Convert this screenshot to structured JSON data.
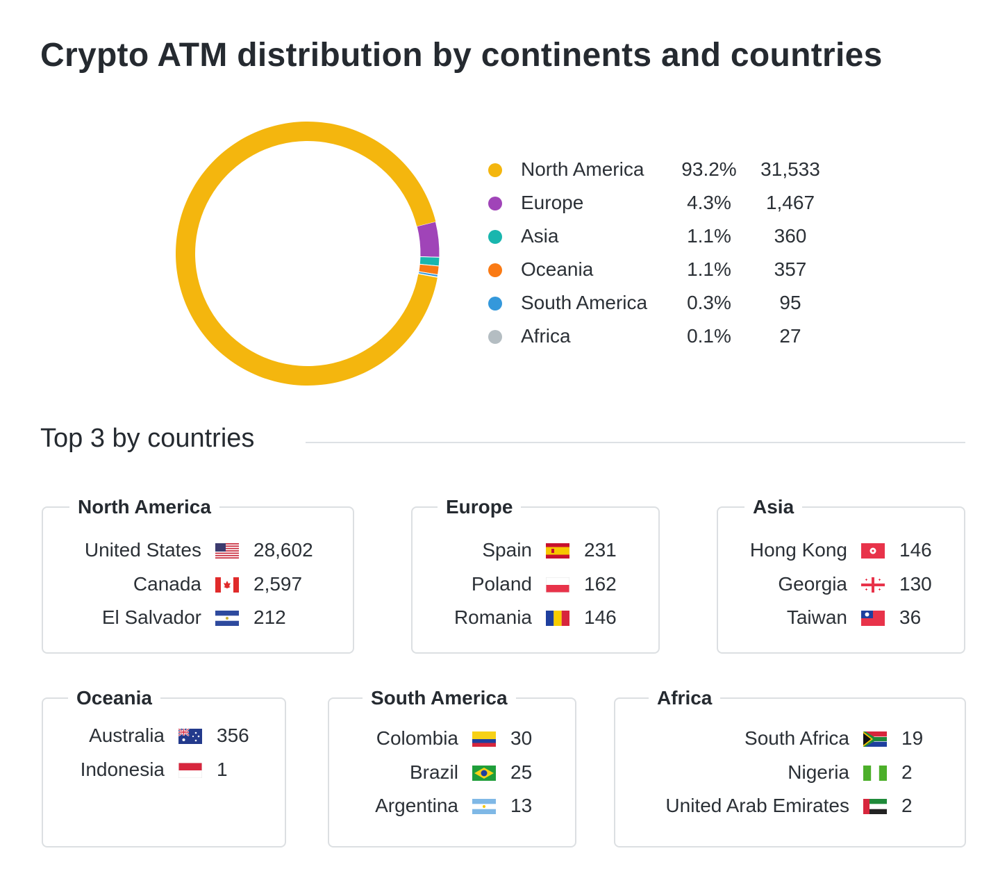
{
  "title": "Crypto ATM distribution by continents and countries",
  "chart_data": {
    "type": "pie",
    "donut": true,
    "categories": [
      "North America",
      "Europe",
      "Asia",
      "Oceania",
      "South America",
      "Africa"
    ],
    "values": [
      31533,
      1467,
      360,
      357,
      95,
      27
    ],
    "percentages": [
      "93.2%",
      "4.3%",
      "1.1%",
      "1.1%",
      "0.3%",
      "0.1%"
    ],
    "value_labels": [
      "31,533",
      "1,467",
      "360",
      "357",
      "95",
      "27"
    ],
    "colors": [
      "#f4b60e",
      "#a044b8",
      "#19b6ae",
      "#fa7a14",
      "#3498db",
      "#b4bdc2"
    ],
    "legend_position": "right"
  },
  "top3": {
    "title": "Top 3 by countries",
    "groups": [
      {
        "continent": "North America",
        "countries": [
          {
            "name": "United States",
            "flag": "flag-us-icon",
            "value": "28,602"
          },
          {
            "name": "Canada",
            "flag": "flag-ca-icon",
            "value": "2,597"
          },
          {
            "name": "El Salvador",
            "flag": "flag-sv-icon",
            "value": "212"
          }
        ]
      },
      {
        "continent": "Europe",
        "countries": [
          {
            "name": "Spain",
            "flag": "flag-es-icon",
            "value": "231"
          },
          {
            "name": "Poland",
            "flag": "flag-pl-icon",
            "value": "162"
          },
          {
            "name": "Romania",
            "flag": "flag-ro-icon",
            "value": "146"
          }
        ]
      },
      {
        "continent": "Asia",
        "countries": [
          {
            "name": "Hong Kong",
            "flag": "flag-hk-icon",
            "value": "146"
          },
          {
            "name": "Georgia",
            "flag": "flag-ge-icon",
            "value": "130"
          },
          {
            "name": "Taiwan",
            "flag": "flag-tw-icon",
            "value": "36"
          }
        ]
      },
      {
        "continent": "Oceania",
        "countries": [
          {
            "name": "Australia",
            "flag": "flag-au-icon",
            "value": "356"
          },
          {
            "name": "Indonesia",
            "flag": "flag-id-icon",
            "value": "1"
          }
        ]
      },
      {
        "continent": "South America",
        "countries": [
          {
            "name": "Colombia",
            "flag": "flag-co-icon",
            "value": "30"
          },
          {
            "name": "Brazil",
            "flag": "flag-br-icon",
            "value": "25"
          },
          {
            "name": "Argentina",
            "flag": "flag-ar-icon",
            "value": "13"
          }
        ]
      },
      {
        "continent": "Africa",
        "countries": [
          {
            "name": "South Africa",
            "flag": "flag-za-icon",
            "value": "19"
          },
          {
            "name": "Nigeria",
            "flag": "flag-ng-icon",
            "value": "2"
          },
          {
            "name": "United Arab Emirates",
            "flag": "flag-ae-icon",
            "value": "2"
          }
        ]
      }
    ]
  }
}
